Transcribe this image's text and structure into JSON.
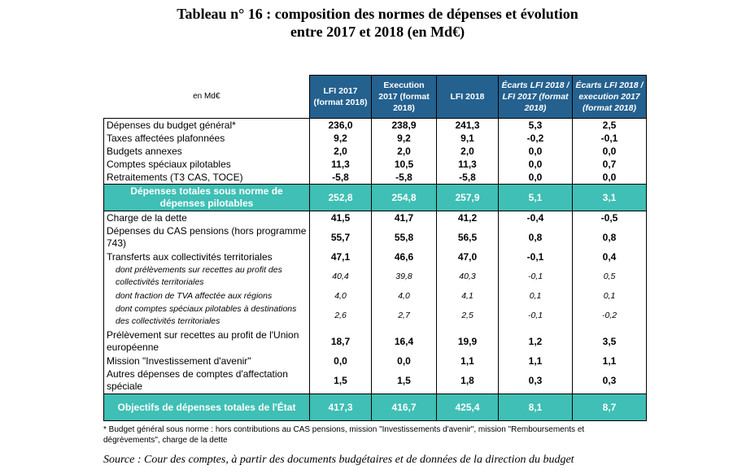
{
  "title_line1": "Tableau n° 16 : composition des normes de dépenses et évolution",
  "title_line2": "entre 2017 et 2018 (en Md€)",
  "header": {
    "unit": "en Md€",
    "columns": [
      "LFI 2017 (format 2018)",
      "Execution 2017 (format 2018)",
      "LFI 2018",
      "Écarts LFI 2018 / LFI 2017 (format 2018)",
      "Écarts LFI 2018 / execution 2017 (format 2018)"
    ]
  },
  "rows": [
    {
      "label": "Dépenses du budget général*",
      "values": [
        "236,0",
        "238,9",
        "241,3",
        "5,3",
        "2,5"
      ]
    },
    {
      "label": "Taxes affectées plafonnées",
      "values": [
        "9,2",
        "9,2",
        "9,1",
        "-0,2",
        "-0,1"
      ]
    },
    {
      "label": "Budgets annexes",
      "values": [
        "2,0",
        "2,0",
        "2,0",
        "0,0",
        "0,0"
      ]
    },
    {
      "label": "Comptes spéciaux pilotables",
      "values": [
        "11,3",
        "10,5",
        "11,3",
        "0,0",
        "0,7"
      ]
    },
    {
      "label": "Retraitements (T3 CAS, TOCE)",
      "values": [
        "-5,8",
        "-5,8",
        "-5,8",
        "0,0",
        "0,0"
      ]
    },
    {
      "label": "Dépenses totales sous norme de dépenses pilotables",
      "values": [
        "252,8",
        "254,8",
        "257,9",
        "5,1",
        "3,1"
      ]
    },
    {
      "label": "Charge de la dette",
      "values": [
        "41,5",
        "41,7",
        "41,2",
        "-0,4",
        "-0,5"
      ]
    },
    {
      "label": "Dépenses du CAS pensions (hors programme 743)",
      "values": [
        "55,7",
        "55,8",
        "56,5",
        "0,8",
        "0,8"
      ]
    },
    {
      "label": "Transferts aux collectivités territoriales",
      "values": [
        "47,1",
        "46,6",
        "47,0",
        "-0,1",
        "0,4"
      ]
    },
    {
      "label": "dont prélèvements sur recettes au profit des collectivités territoriales",
      "values": [
        "40,4",
        "39,8",
        "40,3",
        "-0,1",
        "0,5"
      ]
    },
    {
      "label": "dont fraction de TVA affectée aux régions",
      "values": [
        "4,0",
        "4,0",
        "4,1",
        "0,1",
        "0,1"
      ]
    },
    {
      "label": "dont comptes spéciaux pilotables à destinations des collectivités territoriales",
      "values": [
        "2,6",
        "2,7",
        "2,5",
        "-0,1",
        "-0,2"
      ]
    },
    {
      "label": "Prélèvement sur recettes au profit de l'Union européenne",
      "values": [
        "18,7",
        "16,4",
        "19,9",
        "1,2",
        "3,5"
      ]
    },
    {
      "label": "Mission \"Investissement d'avenir\"",
      "values": [
        "0,0",
        "0,0",
        "1,1",
        "1,1",
        "1,1"
      ]
    },
    {
      "label": "Autres dépenses de comptes d'affectation spéciale",
      "values": [
        "1,5",
        "1,5",
        "1,8",
        "0,3",
        "0,3"
      ]
    },
    {
      "label": "Objectifs de dépenses totales de l'État",
      "values": [
        "417,3",
        "416,7",
        "425,4",
        "8,1",
        "8,7"
      ]
    }
  ],
  "note": "* Budget général sous norme : hors contributions au CAS pensions, mission \"Investissements d'avenir\", mission \"Remboursements et dégrèvements\", charge de la dette",
  "source": "Source : Cour des comptes, à partir des documents budgétaires et de données de la direction du budget",
  "colors": {
    "header_bg": "#24618f",
    "total_bg": "#3fbfb5"
  }
}
